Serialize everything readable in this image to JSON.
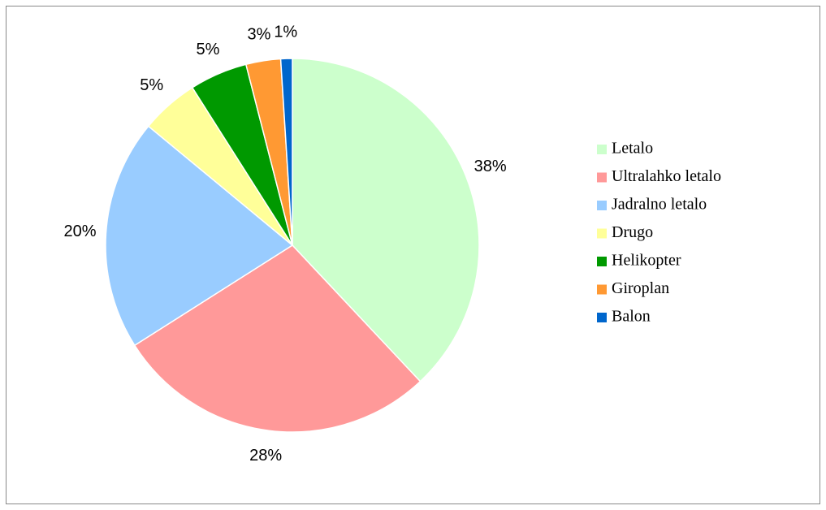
{
  "chart_data": {
    "type": "pie",
    "categories": [
      "Letalo",
      "Ultralahko letalo",
      "Jadralno letalo",
      "Drugo",
      "Helikopter",
      "Giroplan",
      "Balon"
    ],
    "values": [
      38,
      28,
      20,
      5,
      5,
      3,
      1
    ],
    "value_labels": [
      "38%",
      "28%",
      "20%",
      "5%",
      "5%",
      "3%",
      "1%"
    ],
    "colors": [
      "#ccffcc",
      "#ff9999",
      "#99ccff",
      "#ffff99",
      "#009900",
      "#ff9933",
      "#0066cc"
    ],
    "legend": "right"
  }
}
